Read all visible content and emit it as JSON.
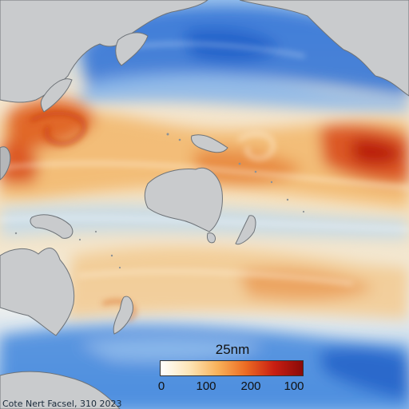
{
  "map": {
    "legend": {
      "title": "25nm",
      "ticks": [
        "0",
        "100",
        "200",
        "100"
      ],
      "gradient": [
        "#ffffff",
        "#fde6b8",
        "#f9b25a",
        "#ec6b23",
        "#c81e12",
        "#8a0a08"
      ]
    },
    "credit": "Cote Nert Facsel, 310 2023",
    "colors": {
      "land": "#c8cacc",
      "land_stroke": "#6e7378",
      "cold": "#3a7fd8",
      "cool": "#a9cdef",
      "neutral": "#f6efe0",
      "warm": "#f3bc6c",
      "hot": "#e46a25",
      "hottest": "#c01f12"
    },
    "icons": [
      "coastline-shape",
      "color-gradient-bar"
    ]
  }
}
